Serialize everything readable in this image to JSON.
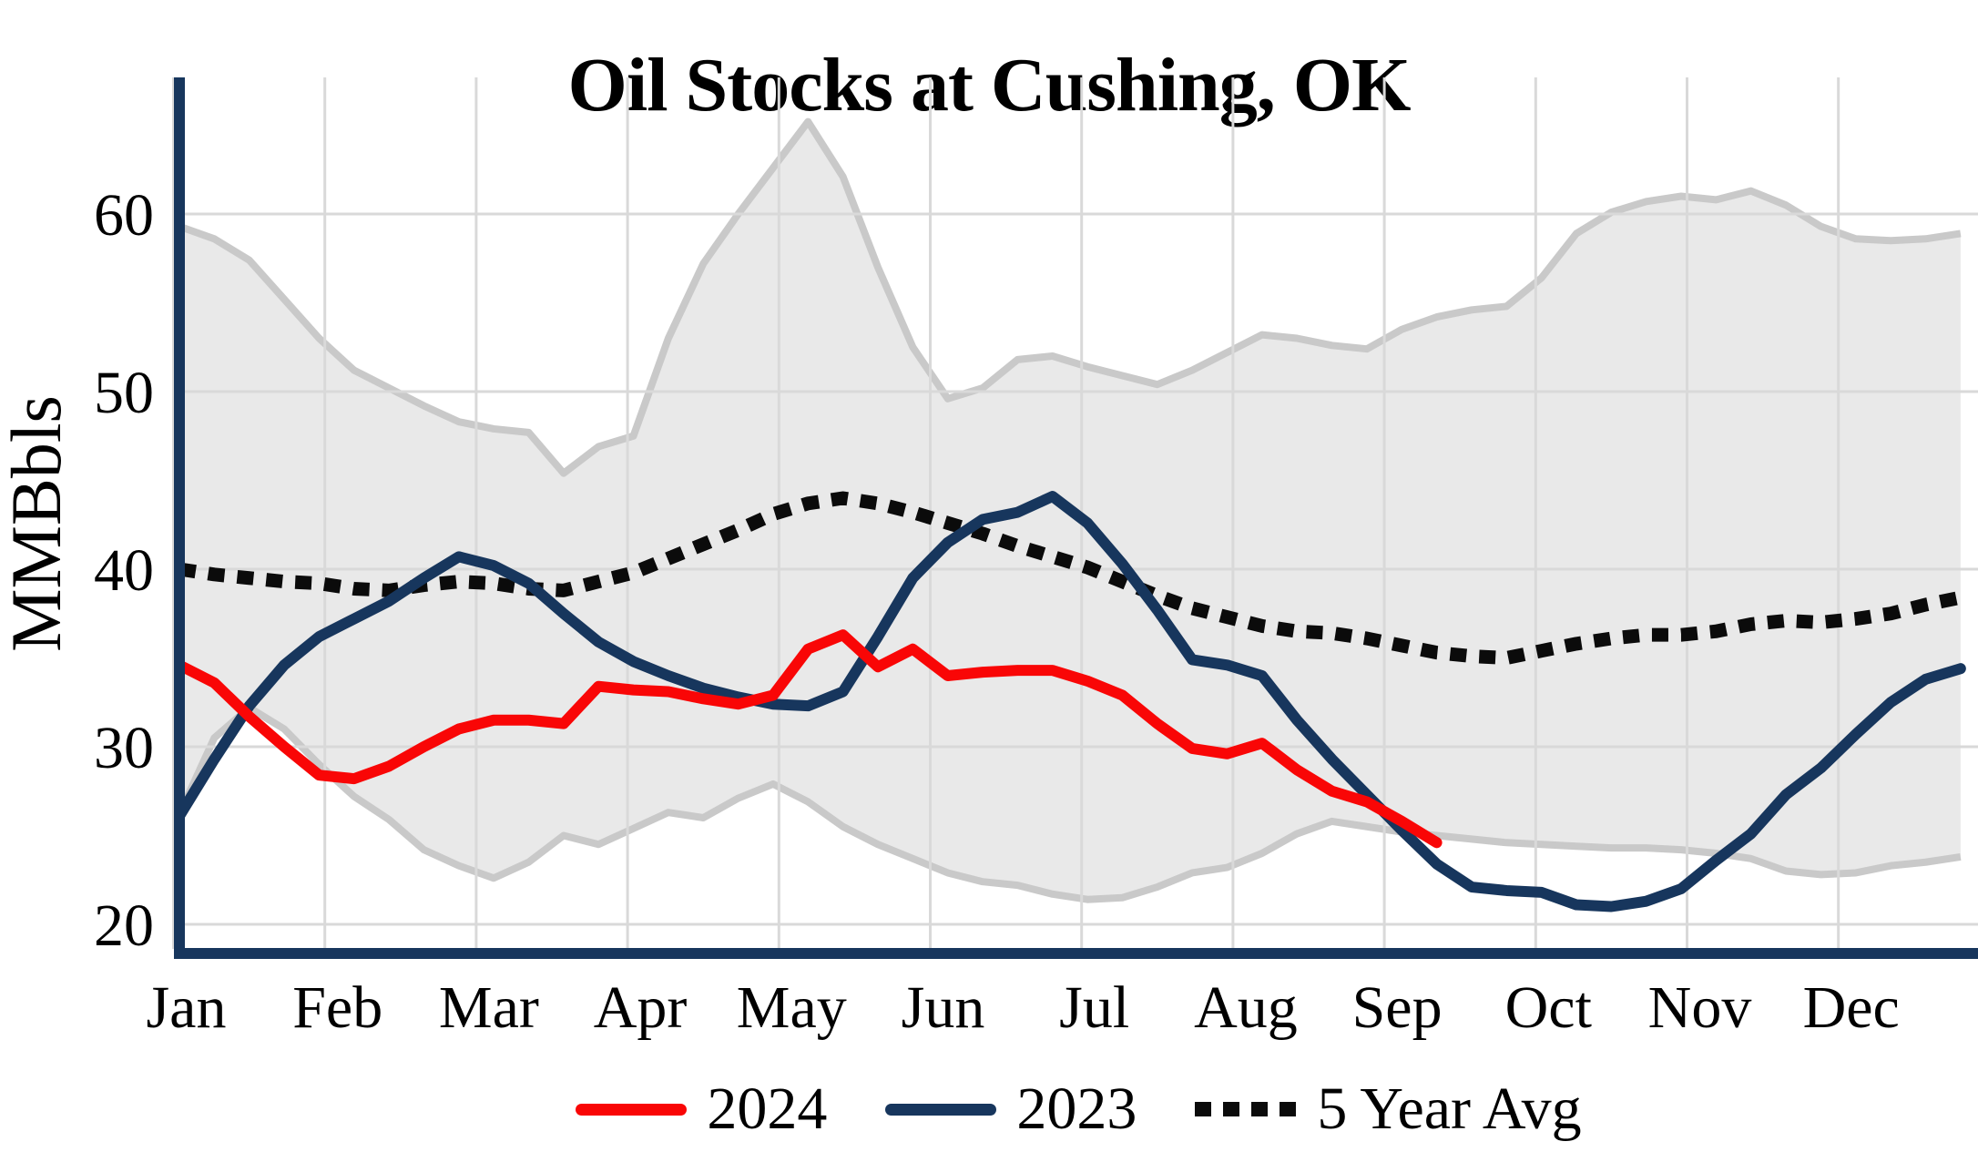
{
  "title": "Oil Stocks at Cushing, OK",
  "y_axis": {
    "label": "MMBbls",
    "ticks": [
      20,
      30,
      40,
      50,
      60
    ]
  },
  "x_axis": {
    "months": [
      "Jan",
      "Feb",
      "Mar",
      "Apr",
      "May",
      "Jun",
      "Jul",
      "Aug",
      "Sep",
      "Oct",
      "Nov",
      "Dec"
    ]
  },
  "chart_data": {
    "type": "line",
    "title": "Oil Stocks at Cushing, OK",
    "xlabel": "",
    "ylabel": "MMBbls",
    "unit": "MMBbls",
    "frequency": "weekly",
    "ylim": [
      18.5,
      67.5
    ],
    "yticks": [
      20,
      30,
      40,
      50,
      60
    ],
    "grid": true,
    "grid_color": "#d9d9d9",
    "axis_color": "#17365d",
    "legend_position": "bottom",
    "months": [
      "Jan",
      "Feb",
      "Mar",
      "Apr",
      "May",
      "Jun",
      "Jul",
      "Aug",
      "Sep",
      "Oct",
      "Nov",
      "Dec"
    ],
    "band": {
      "name": "5-year range",
      "fill": "#e9e9e9",
      "edge": "#c9c9c9",
      "top": [
        59.3,
        58.6,
        57.4,
        55.2,
        53.0,
        51.2,
        50.2,
        49.2,
        48.3,
        47.9,
        47.7,
        45.4,
        46.9,
        47.5,
        53.0,
        57.2,
        60.0,
        62.6,
        65.2,
        62.1,
        57.0,
        52.5,
        49.6,
        50.2,
        51.8,
        52.0,
        51.4,
        50.9,
        50.4,
        51.2,
        52.2,
        53.2,
        53.0,
        52.6,
        52.4,
        53.5,
        54.2,
        54.6,
        54.8,
        56.4,
        58.9,
        60.1,
        60.7,
        61.0,
        60.8,
        61.3,
        60.5,
        59.3,
        58.6,
        58.5,
        58.6,
        58.9
      ],
      "bottom": [
        26.2,
        30.5,
        32.2,
        31.0,
        29.0,
        27.2,
        25.9,
        24.2,
        23.3,
        22.6,
        23.5,
        25.0,
        24.5,
        25.4,
        26.3,
        26.0,
        27.1,
        27.9,
        26.9,
        25.5,
        24.5,
        23.7,
        22.9,
        22.4,
        22.2,
        21.7,
        21.4,
        21.5,
        22.1,
        22.9,
        23.2,
        24.0,
        25.1,
        25.8,
        25.5,
        25.2,
        25.0,
        24.8,
        24.6,
        24.5,
        24.4,
        24.3,
        24.3,
        24.2,
        24.0,
        23.7,
        23.0,
        22.8,
        22.9,
        23.3,
        23.5,
        23.8
      ]
    },
    "series": [
      {
        "name": "2024",
        "color": "#f90606",
        "style": "solid",
        "values": [
          34.6,
          33.6,
          31.7,
          30.0,
          28.4,
          28.2,
          28.9,
          30.0,
          31.0,
          31.5,
          31.5,
          31.3,
          33.4,
          33.2,
          33.1,
          32.7,
          32.4,
          32.9,
          35.5,
          36.3,
          34.5,
          35.5,
          34.0,
          34.2,
          34.3,
          34.3,
          33.7,
          32.9,
          31.3,
          29.9,
          29.6,
          30.2,
          28.7,
          27.5,
          26.9,
          25.8,
          24.6
        ]
      },
      {
        "name": "2023",
        "color": "#17365d",
        "style": "solid",
        "values": [
          26.1,
          29.3,
          32.3,
          34.6,
          36.2,
          37.2,
          38.2,
          39.5,
          40.7,
          40.2,
          39.2,
          37.5,
          35.9,
          34.8,
          34.0,
          33.3,
          32.8,
          32.4,
          32.3,
          33.1,
          36.2,
          39.5,
          41.5,
          42.8,
          43.2,
          44.1,
          42.6,
          40.3,
          37.7,
          34.9,
          34.6,
          34.0,
          31.5,
          29.3,
          27.3,
          25.3,
          23.4,
          22.1,
          21.9,
          21.8,
          21.1,
          21.0,
          21.3,
          22.0,
          23.6,
          25.1,
          27.3,
          28.8,
          30.7,
          32.5,
          33.8,
          34.4
        ]
      },
      {
        "name": "5 Year Avg",
        "color": "#0b0b0b",
        "style": "dotted",
        "values": [
          40.0,
          39.7,
          39.5,
          39.3,
          39.2,
          38.9,
          38.8,
          39.1,
          39.3,
          39.2,
          38.9,
          38.8,
          39.3,
          39.8,
          40.6,
          41.4,
          42.2,
          43.1,
          43.7,
          44.0,
          43.7,
          43.2,
          42.6,
          42.0,
          41.3,
          40.7,
          40.1,
          39.3,
          38.5,
          37.8,
          37.3,
          36.8,
          36.5,
          36.4,
          36.1,
          35.7,
          35.3,
          35.1,
          35.0,
          35.4,
          35.8,
          36.1,
          36.3,
          36.3,
          36.5,
          36.9,
          37.1,
          37.0,
          37.2,
          37.5,
          38.0,
          38.4
        ]
      }
    ]
  }
}
